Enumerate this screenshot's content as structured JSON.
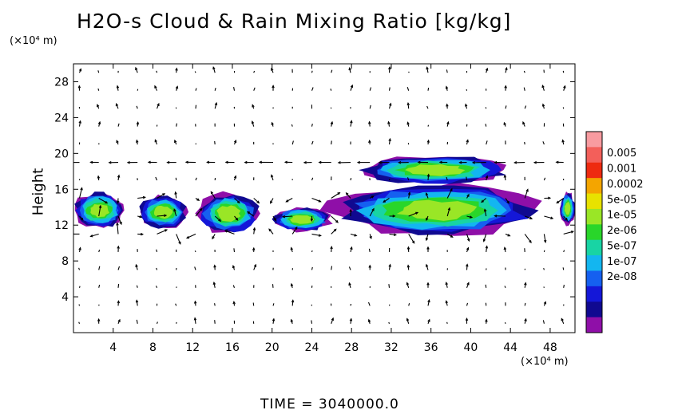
{
  "chart_data": {
    "type": "heatmap",
    "title": "H2O-s Cloud & Rain Mixing Ratio [kg/kg]",
    "xunit": "(×10⁴ m)",
    "yunit": "(×10⁴ m)",
    "ylabel": "Height",
    "xlim": [
      0,
      50.5
    ],
    "ylim": [
      0,
      30
    ],
    "xticks": [
      "4",
      "8",
      "12",
      "16",
      "20",
      "24",
      "28",
      "32",
      "36",
      "40",
      "44",
      "48"
    ],
    "yticks": [
      "4",
      "8",
      "12",
      "16",
      "20",
      "24",
      "28"
    ],
    "colorbar": {
      "labels": [
        "0.005",
        "0.001",
        "0.0002",
        "5e-05",
        "1e-05",
        "2e-06",
        "5e-07",
        "1e-07",
        "2e-08"
      ],
      "colors": [
        "#f89ba0",
        "#f35f5a",
        "#ee2a10",
        "#f4a500",
        "#e8e200",
        "#9ae626",
        "#29d62a",
        "#18d4a4",
        "#13b6f0",
        "#1560f0",
        "#1417d8",
        "#100990",
        "#8f0fa8"
      ]
    },
    "cloud_regions": [
      {
        "x": [
          0,
          5.2
        ],
        "y": [
          11.6,
          15.7
        ]
      },
      {
        "x": [
          6.5,
          11.5
        ],
        "y": [
          11.6,
          15.3
        ]
      },
      {
        "x": [
          12.5,
          18.8
        ],
        "y": [
          11.0,
          15.6
        ]
      },
      {
        "x": [
          20,
          26
        ],
        "y": [
          11.3,
          14.0
        ]
      },
      {
        "x": [
          26,
          47
        ],
        "y": [
          10.8,
          16.5
        ]
      },
      {
        "x": [
          29,
          44
        ],
        "y": [
          16.5,
          19.8
        ]
      },
      {
        "x": [
          49,
          50.5
        ],
        "y": [
          12.0,
          15.7
        ]
      }
    ],
    "footer": "TIME = 3040000.0"
  }
}
